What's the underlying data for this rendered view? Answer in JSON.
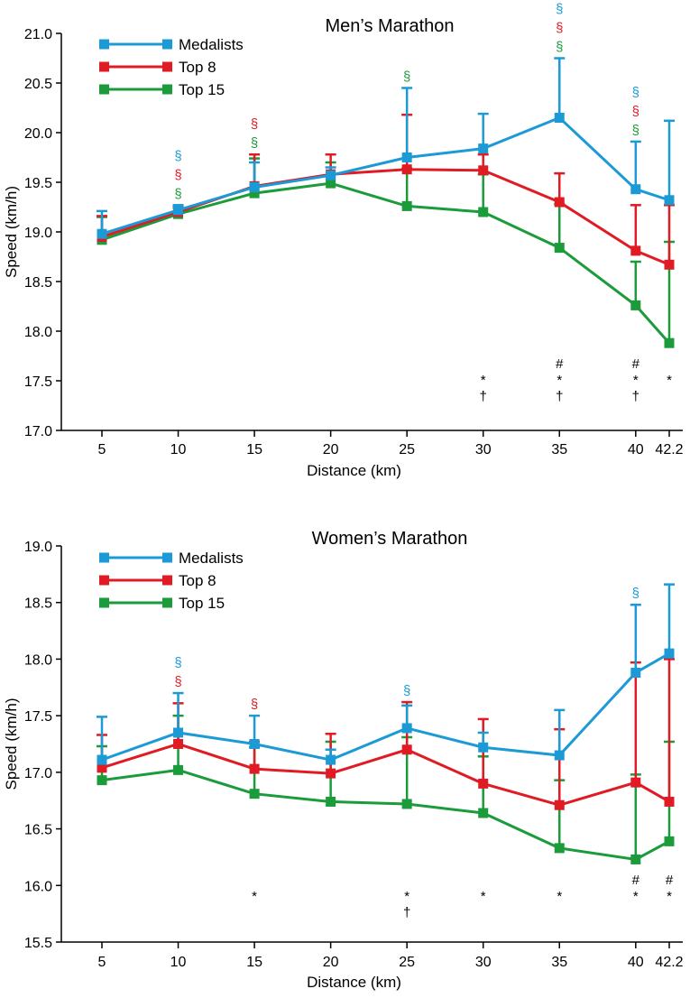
{
  "chart_data": [
    {
      "type": "line",
      "title": "Men’s Marathon",
      "xlabel": "Distance (km)",
      "ylabel": "Speed (km/h)",
      "x": [
        5,
        10,
        15,
        20,
        25,
        30,
        35,
        40,
        42.2
      ],
      "x_tick_labels": [
        "5",
        "10",
        "15",
        "20",
        "25",
        "30",
        "35",
        "40",
        "42.2"
      ],
      "ylim": [
        17.0,
        21.0
      ],
      "y_ticks": [
        "17.0",
        "17.5",
        "18.0",
        "18.5",
        "19.0",
        "19.5",
        "20.0",
        "20.5",
        "21.0"
      ],
      "grid": false,
      "legend_position": "top-left",
      "series": [
        {
          "name": "Medalists",
          "color": "#1b9ad6",
          "values": [
            18.98,
            19.22,
            19.45,
            19.57,
            19.75,
            19.84,
            20.15,
            19.43,
            19.32
          ],
          "error_upper": [
            19.21,
            19.27,
            19.7,
            19.65,
            20.45,
            20.19,
            20.75,
            19.91,
            20.12
          ]
        },
        {
          "name": "Top 8",
          "color": "#e01b24",
          "values": [
            18.95,
            19.2,
            19.46,
            19.58,
            19.63,
            19.62,
            19.3,
            18.81,
            18.67
          ],
          "error_upper": [
            19.16,
            19.26,
            19.78,
            19.78,
            20.18,
            19.78,
            19.59,
            19.27,
            19.27
          ]
        },
        {
          "name": "Top 15",
          "color": "#1b9b3a",
          "values": [
            18.92,
            19.18,
            19.39,
            19.49,
            19.26,
            19.2,
            18.84,
            18.26,
            17.88
          ],
          "error_upper": [
            19.15,
            19.24,
            19.74,
            19.7,
            19.64,
            19.58,
            19.28,
            18.7,
            18.9
          ]
        }
      ],
      "section_marks": [
        {
          "x": 10,
          "colors": [
            "#1b9ad6",
            "#e01b24",
            "#1b9b3a"
          ]
        },
        {
          "x": 15,
          "colors": [
            "#e01b24",
            "#1b9b3a"
          ]
        },
        {
          "x": 25,
          "colors": [
            "#1b9b3a"
          ]
        },
        {
          "x": 35,
          "colors": [
            "#1b9ad6",
            "#e01b24",
            "#1b9b3a"
          ]
        },
        {
          "x": 40,
          "colors": [
            "#1b9ad6",
            "#e01b24",
            "#1b9b3a"
          ]
        }
      ],
      "significance_marks": [
        {
          "x": 30,
          "symbols": [
            "*",
            "†"
          ]
        },
        {
          "x": 35,
          "symbols": [
            "#",
            "*",
            "†"
          ]
        },
        {
          "x": 40,
          "symbols": [
            "#",
            "*",
            "†"
          ]
        },
        {
          "x": 42.2,
          "symbols": [
            "*"
          ]
        }
      ],
      "section_symbol": "§"
    },
    {
      "type": "line",
      "title": "Women’s Marathon",
      "xlabel": "Distance (km)",
      "ylabel": "Speed (km/h)",
      "x": [
        5,
        10,
        15,
        20,
        25,
        30,
        35,
        40,
        42.2
      ],
      "x_tick_labels": [
        "5",
        "10",
        "15",
        "20",
        "25",
        "30",
        "35",
        "40",
        "42.2"
      ],
      "ylim": [
        15.5,
        19.0
      ],
      "y_ticks": [
        "15.5",
        "16.0",
        "16.5",
        "17.0",
        "17.5",
        "18.0",
        "18.5",
        "19.0"
      ],
      "grid": false,
      "legend_position": "top-left",
      "series": [
        {
          "name": "Medalists",
          "color": "#1b9ad6",
          "values": [
            17.11,
            17.35,
            17.25,
            17.11,
            17.39,
            17.22,
            17.15,
            17.88,
            18.05
          ],
          "error_upper": [
            17.49,
            17.7,
            17.5,
            17.2,
            17.59,
            17.35,
            17.55,
            18.48,
            18.66
          ]
        },
        {
          "name": "Top 8",
          "color": "#e01b24",
          "values": [
            17.04,
            17.25,
            17.03,
            16.99,
            17.2,
            16.9,
            16.71,
            16.91,
            16.74
          ],
          "error_upper": [
            17.33,
            17.61,
            17.27,
            17.34,
            17.62,
            17.47,
            17.38,
            17.97,
            18.0
          ]
        },
        {
          "name": "Top 15",
          "color": "#1b9b3a",
          "values": [
            16.93,
            17.02,
            16.81,
            16.74,
            16.72,
            16.64,
            16.33,
            16.23,
            16.39
          ],
          "error_upper": [
            17.23,
            17.5,
            17.22,
            17.27,
            17.31,
            17.14,
            16.93,
            16.98,
            17.27
          ]
        }
      ],
      "section_marks": [
        {
          "x": 10,
          "colors": [
            "#1b9ad6",
            "#e01b24"
          ]
        },
        {
          "x": 15,
          "colors": [
            "#e01b24"
          ]
        },
        {
          "x": 25,
          "colors": [
            "#1b9ad6"
          ]
        },
        {
          "x": 40,
          "colors": [
            "#1b9ad6"
          ]
        }
      ],
      "significance_marks": [
        {
          "x": 15,
          "symbols": [
            "*"
          ]
        },
        {
          "x": 25,
          "symbols": [
            "*",
            "†"
          ]
        },
        {
          "x": 30,
          "symbols": [
            "*"
          ]
        },
        {
          "x": 35,
          "symbols": [
            "*"
          ]
        },
        {
          "x": 40,
          "symbols": [
            "#",
            "*"
          ]
        },
        {
          "x": 42.2,
          "symbols": [
            "#",
            "*"
          ]
        }
      ],
      "section_symbol": "§"
    }
  ]
}
